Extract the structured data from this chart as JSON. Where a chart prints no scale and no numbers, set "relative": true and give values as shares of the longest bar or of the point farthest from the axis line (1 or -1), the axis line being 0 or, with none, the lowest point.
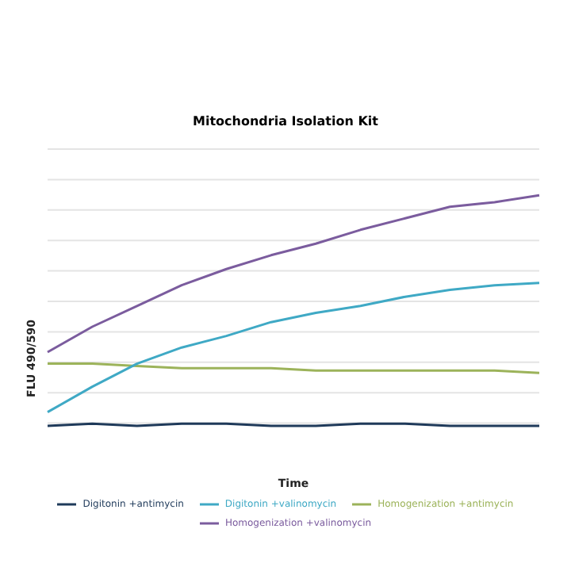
{
  "chart_data": {
    "type": "line",
    "title": "Mitochondria Isolation Kit",
    "xlabel": "Time",
    "ylabel": "FLU 490/590",
    "relative": true,
    "grid": "y",
    "legend": "bottom",
    "marker": "none",
    "line_style": "solid",
    "categories": [
      null,
      null,
      null,
      null,
      null,
      null,
      null,
      null,
      null,
      null,
      null,
      null
    ],
    "series": [
      {
        "name": "Homogenization +valinomycin",
        "color": "#7b5c9e",
        "values": [
          0.32,
          0.43,
          0.52,
          0.61,
          0.68,
          0.74,
          0.79,
          0.85,
          0.9,
          0.95,
          0.97,
          1
        ]
      },
      {
        "name": "Homogenization +antimycin",
        "color": "#9cb35a",
        "values": [
          0.27,
          0.27,
          0.26,
          0.25,
          0.25,
          0.25,
          0.24,
          0.24,
          0.24,
          0.24,
          0.24,
          0.23
        ]
      },
      {
        "name": "Digitonin +valinomycin",
        "color": "#3fa9c5",
        "values": [
          0.06,
          0.17,
          0.27,
          0.34,
          0.39,
          0.45,
          0.49,
          0.52,
          0.56,
          0.59,
          0.61,
          0.62
        ]
      },
      {
        "name": "Digitonin +antimycin",
        "color": "#1f3a5a",
        "values": [
          0,
          0.01,
          0,
          0.01,
          0.01,
          0,
          0,
          0.01,
          0.01,
          0,
          0,
          0
        ]
      }
    ]
  }
}
